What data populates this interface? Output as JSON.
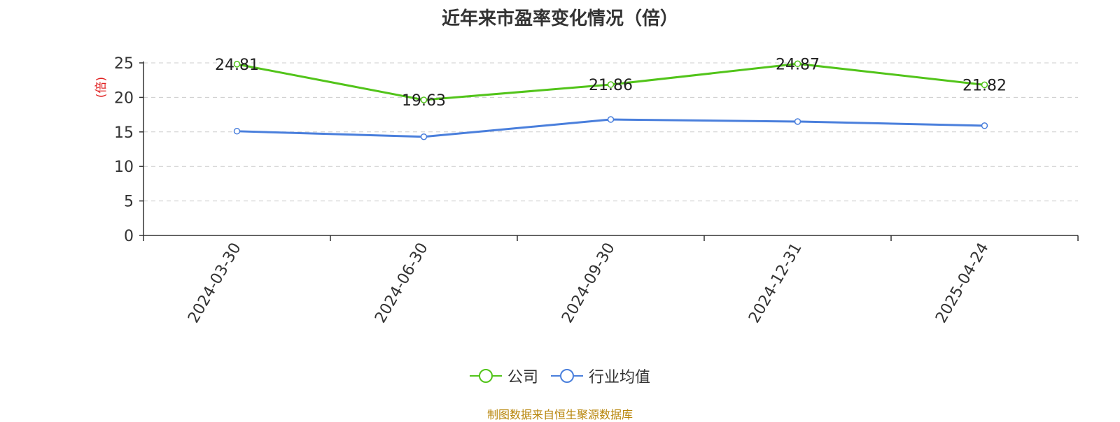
{
  "chart_data": {
    "type": "line",
    "title": "近年来市盈率变化情况（倍）",
    "ylabel": "(倍)",
    "xlabel": "",
    "categories": [
      "2024-03-30",
      "2024-06-30",
      "2024-09-30",
      "2024-12-31",
      "2025-04-24"
    ],
    "ylim": [
      0,
      25
    ],
    "yticks": [
      0,
      5,
      10,
      15,
      20,
      25
    ],
    "grid": true,
    "legend_position": "bottom",
    "series": [
      {
        "name": "公司",
        "values": [
          24.81,
          19.63,
          21.86,
          24.87,
          21.82
        ],
        "color": "#52c41a",
        "show_labels": true
      },
      {
        "name": "行业均值",
        "values": [
          15.1,
          14.3,
          16.8,
          16.5,
          15.9
        ],
        "color": "#4a7fdc",
        "show_labels": false
      }
    ]
  },
  "source_note": "制图数据来自恒生聚源数据库"
}
